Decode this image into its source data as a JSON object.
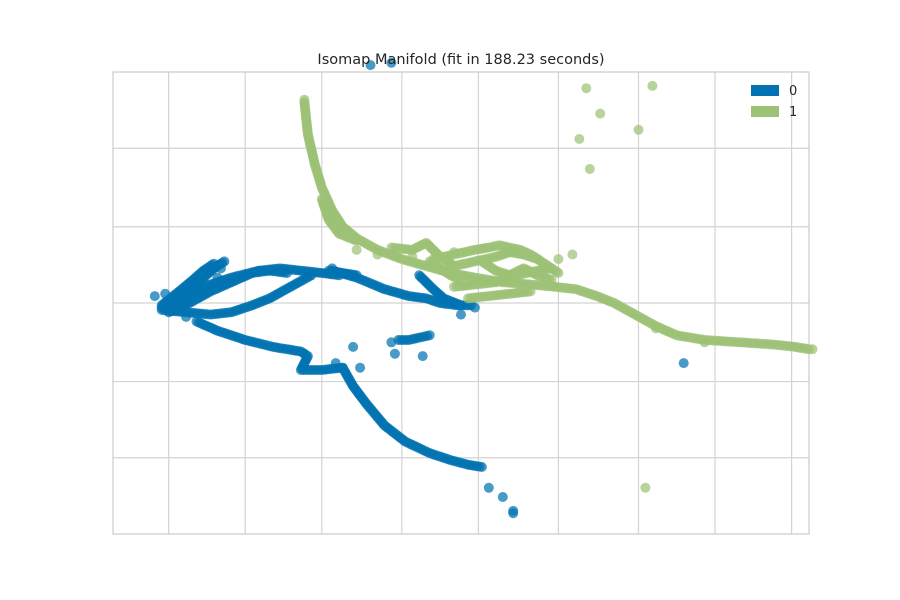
{
  "chart_data": {
    "type": "scatter",
    "title": "Isomap Manifold (fit in 188.23 seconds)",
    "xlabel": "",
    "ylabel": "",
    "xlim": [
      -1.0,
      1.0
    ],
    "ylim": [
      -1.0,
      1.0
    ],
    "grid": true,
    "tick_labels_shown": false,
    "legend": {
      "placement": "top-right",
      "entries": [
        "0",
        "1"
      ]
    },
    "series": [
      {
        "name": "0",
        "color": "#0173b2",
        "curves": [
          [
            [
              -0.86,
              -0.02
            ],
            [
              -0.82,
              0.02
            ],
            [
              -0.78,
              0.06
            ],
            [
              -0.74,
              0.11
            ],
            [
              -0.71,
              0.15
            ],
            [
              -0.68,
              0.18
            ]
          ],
          [
            [
              -0.86,
              -0.01
            ],
            [
              -0.81,
              0.05
            ],
            [
              -0.77,
              0.1
            ],
            [
              -0.74,
              0.14
            ],
            [
              -0.71,
              0.17
            ]
          ],
          [
            [
              -0.84,
              -0.04
            ],
            [
              -0.78,
              0.0
            ],
            [
              -0.72,
              0.05
            ],
            [
              -0.66,
              0.09
            ],
            [
              -0.6,
              0.13
            ],
            [
              -0.55,
              0.14
            ],
            [
              -0.5,
              0.13
            ]
          ],
          [
            [
              -0.83,
              0.0
            ],
            [
              -0.74,
              0.07
            ],
            [
              -0.66,
              0.11
            ],
            [
              -0.58,
              0.14
            ],
            [
              -0.52,
              0.15
            ],
            [
              -0.46,
              0.14
            ],
            [
              -0.4,
              0.13
            ],
            [
              -0.35,
              0.12
            ]
          ],
          [
            [
              -0.86,
              -0.03
            ],
            [
              -0.79,
              -0.04
            ],
            [
              -0.72,
              -0.05
            ],
            [
              -0.66,
              -0.04
            ],
            [
              -0.6,
              -0.01
            ],
            [
              -0.55,
              0.02
            ],
            [
              -0.49,
              0.07
            ],
            [
              -0.43,
              0.12
            ]
          ],
          [
            [
              -0.76,
              -0.08
            ],
            [
              -0.7,
              -0.12
            ],
            [
              -0.62,
              -0.16
            ],
            [
              -0.54,
              -0.19
            ],
            [
              -0.46,
              -0.21
            ],
            [
              -0.44,
              -0.23
            ],
            [
              -0.46,
              -0.29
            ],
            [
              -0.4,
              -0.29
            ],
            [
              -0.34,
              -0.28
            ]
          ],
          [
            [
              -0.34,
              -0.28
            ],
            [
              -0.31,
              -0.36
            ],
            [
              -0.27,
              -0.44
            ],
            [
              -0.22,
              -0.53
            ],
            [
              -0.16,
              -0.6
            ],
            [
              -0.09,
              -0.65
            ],
            [
              -0.03,
              -0.68
            ],
            [
              0.02,
              -0.7
            ],
            [
              0.06,
              -0.71
            ]
          ],
          [
            [
              -0.37,
              0.14
            ],
            [
              -0.3,
              0.11
            ],
            [
              -0.22,
              0.06
            ],
            [
              -0.15,
              0.03
            ],
            [
              -0.1,
              0.02
            ],
            [
              -0.06,
              0.0
            ],
            [
              -0.01,
              -0.01
            ],
            [
              0.03,
              -0.01
            ]
          ],
          [
            [
              -0.12,
              0.12
            ],
            [
              -0.08,
              0.06
            ],
            [
              -0.05,
              0.02
            ],
            [
              0.0,
              -0.01
            ]
          ],
          [
            [
              -0.38,
              0.14
            ],
            [
              -0.34,
              0.13
            ],
            [
              -0.3,
              0.12
            ]
          ],
          [
            [
              -0.18,
              -0.16
            ],
            [
              -0.15,
              -0.16
            ],
            [
              -0.12,
              -0.15
            ],
            [
              -0.09,
              -0.14
            ]
          ]
        ],
        "points": [
          [
            -0.26,
            1.03
          ],
          [
            -0.2,
            1.04
          ],
          [
            0.64,
            -0.26
          ],
          [
            0.08,
            -0.8
          ],
          [
            0.12,
            -0.84
          ],
          [
            0.15,
            -0.9
          ],
          [
            0.15,
            -0.91
          ],
          [
            -0.2,
            -0.17
          ],
          [
            -0.19,
            -0.22
          ],
          [
            -0.11,
            -0.23
          ],
          [
            -0.31,
            -0.19
          ],
          [
            -0.36,
            -0.26
          ],
          [
            0.0,
            -0.05
          ],
          [
            0.04,
            -0.02
          ],
          [
            -0.79,
            -0.06
          ],
          [
            -0.7,
            0.11
          ],
          [
            -0.69,
            0.15
          ],
          [
            -0.58,
            0.14
          ],
          [
            -0.37,
            0.15
          ],
          [
            -0.29,
            -0.28
          ],
          [
            -0.88,
            0.03
          ],
          [
            -0.85,
            0.04
          ]
        ]
      },
      {
        "name": "1",
        "color": "#9cc276",
        "curves": [
          [
            [
              -0.45,
              0.87
            ],
            [
              -0.44,
              0.73
            ],
            [
              -0.42,
              0.6
            ],
            [
              -0.4,
              0.5
            ],
            [
              -0.37,
              0.4
            ],
            [
              -0.34,
              0.33
            ],
            [
              -0.3,
              0.28
            ],
            [
              -0.24,
              0.23
            ],
            [
              -0.17,
              0.19
            ],
            [
              -0.1,
              0.16
            ],
            [
              -0.03,
              0.13
            ],
            [
              0.04,
              0.11
            ],
            [
              0.12,
              0.09
            ],
            [
              0.2,
              0.08
            ],
            [
              0.27,
              0.07
            ],
            [
              0.33,
              0.06
            ],
            [
              0.39,
              0.03
            ],
            [
              0.44,
              0.0
            ],
            [
              0.5,
              -0.05
            ],
            [
              0.56,
              -0.1
            ],
            [
              0.62,
              -0.14
            ],
            [
              0.7,
              -0.16
            ],
            [
              0.8,
              -0.17
            ],
            [
              0.9,
              -0.18
            ],
            [
              0.96,
              -0.19
            ],
            [
              1.0,
              -0.2
            ]
          ],
          [
            [
              -0.4,
              0.45
            ],
            [
              -0.38,
              0.36
            ],
            [
              -0.35,
              0.3
            ],
            [
              -0.3,
              0.27
            ]
          ],
          [
            [
              -0.2,
              0.24
            ],
            [
              -0.14,
              0.23
            ],
            [
              -0.1,
              0.26
            ],
            [
              -0.06,
              0.2
            ],
            [
              -0.02,
              0.16
            ],
            [
              0.04,
              0.18
            ],
            [
              0.1,
              0.2
            ],
            [
              0.14,
              0.22
            ],
            [
              0.18,
              0.21
            ],
            [
              0.22,
              0.19
            ]
          ],
          [
            [
              -0.08,
              0.19
            ],
            [
              -0.02,
              0.21
            ],
            [
              0.04,
              0.23
            ],
            [
              0.08,
              0.24
            ],
            [
              0.11,
              0.25
            ],
            [
              0.14,
              0.24
            ],
            [
              0.17,
              0.23
            ],
            [
              0.2,
              0.21
            ],
            [
              0.24,
              0.17
            ],
            [
              0.28,
              0.13
            ]
          ],
          [
            [
              -0.02,
              0.07
            ],
            [
              0.04,
              0.08
            ],
            [
              0.1,
              0.09
            ],
            [
              0.16,
              0.12
            ],
            [
              0.22,
              0.14
            ],
            [
              0.26,
              0.15
            ]
          ],
          [
            [
              0.02,
              0.02
            ],
            [
              0.08,
              0.03
            ],
            [
              0.14,
              0.04
            ],
            [
              0.2,
              0.05
            ]
          ],
          [
            [
              0.06,
              0.18
            ],
            [
              0.1,
              0.14
            ],
            [
              0.14,
              0.12
            ],
            [
              0.18,
              0.15
            ],
            [
              0.22,
              0.12
            ],
            [
              0.26,
              0.1
            ]
          ],
          [
            [
              -0.09,
              0.18
            ],
            [
              -0.06,
              0.15
            ],
            [
              -0.03,
              0.12
            ],
            [
              0.0,
              0.1
            ]
          ]
        ],
        "points": [
          [
            -0.45,
            0.88
          ],
          [
            0.4,
            0.82
          ],
          [
            0.36,
            0.93
          ],
          [
            0.55,
            0.94
          ],
          [
            0.51,
            0.75
          ],
          [
            0.34,
            0.71
          ],
          [
            0.37,
            0.58
          ],
          [
            0.53,
            -0.8
          ],
          [
            1.01,
            -0.2
          ],
          [
            0.28,
            0.19
          ],
          [
            0.32,
            0.21
          ],
          [
            -0.24,
            0.21
          ],
          [
            -0.3,
            0.23
          ],
          [
            -0.14,
            0.2
          ],
          [
            -0.02,
            0.22
          ],
          [
            0.56,
            -0.11
          ],
          [
            0.7,
            -0.17
          ]
        ]
      }
    ]
  }
}
